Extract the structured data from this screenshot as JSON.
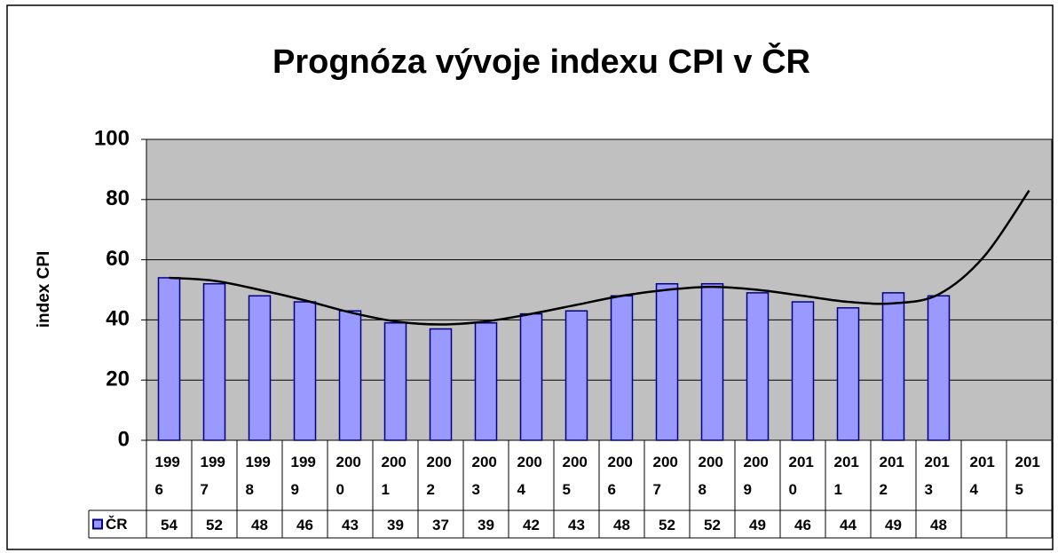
{
  "chart_data": {
    "type": "bar",
    "title": "Prognóza vývoje indexu CPI v ČR",
    "y_label": "index CPI",
    "categories": [
      "1996",
      "1997",
      "1998",
      "1999",
      "2000",
      "2001",
      "2002",
      "2003",
      "2004",
      "2005",
      "2006",
      "2007",
      "2008",
      "2009",
      "2010",
      "2011",
      "2012",
      "2013",
      "2014",
      "2015"
    ],
    "series": [
      {
        "name": "ČR",
        "color": "#9999ff",
        "values": [
          54,
          52,
          48,
          46,
          43,
          39,
          37,
          39,
          42,
          43,
          48,
          52,
          52,
          49,
          46,
          44,
          49,
          48,
          null,
          null
        ]
      }
    ],
    "trendline": {
      "color": "#000000",
      "values": [
        54,
        53,
        50,
        46.5,
        42.5,
        39.5,
        38.5,
        39.5,
        42,
        45,
        48,
        50,
        51,
        50,
        48,
        46,
        45.5,
        48.5,
        61,
        83
      ]
    },
    "ylim": [
      0,
      100
    ],
    "yticks": [
      0,
      20,
      40,
      60,
      80,
      100
    ],
    "grid": true,
    "data_table": true
  }
}
